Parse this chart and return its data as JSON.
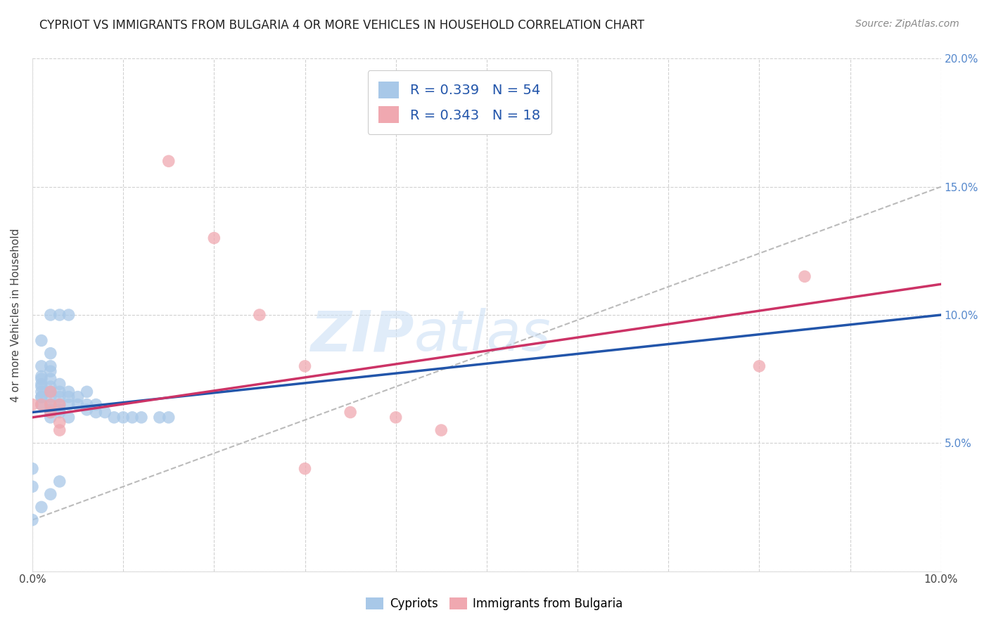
{
  "title": "CYPRIOT VS IMMIGRANTS FROM BULGARIA 4 OR MORE VEHICLES IN HOUSEHOLD CORRELATION CHART",
  "source": "Source: ZipAtlas.com",
  "ylabel": "4 or more Vehicles in Household",
  "xlim": [
    0.0,
    0.1
  ],
  "ylim": [
    0.0,
    0.2
  ],
  "xticks": [
    0.0,
    0.01,
    0.02,
    0.03,
    0.04,
    0.05,
    0.06,
    0.07,
    0.08,
    0.09,
    0.1
  ],
  "yticks": [
    0.0,
    0.05,
    0.1,
    0.15,
    0.2
  ],
  "right_ytick_labels": [
    "",
    "5.0%",
    "10.0%",
    "15.0%",
    "20.0%"
  ],
  "xtick_labels": [
    "0.0%",
    "",
    "",
    "",
    "",
    "",
    "",
    "",
    "",
    "",
    "10.0%"
  ],
  "blue_color": "#a8c8e8",
  "pink_color": "#f0a8b0",
  "blue_line_color": "#2255aa",
  "pink_line_color": "#cc3366",
  "dashed_line_color": "#bbbbbb",
  "legend_text_color": "#2255aa",
  "watermark_text": "ZIPatlas",
  "watermark_color": "#ddeeff",
  "R_blue": 0.339,
  "N_blue": 54,
  "R_pink": 0.343,
  "N_pink": 18,
  "blue_intercept": 0.062,
  "blue_slope": 0.38,
  "pink_intercept": 0.06,
  "pink_slope": 0.52,
  "dashed_intercept": 0.02,
  "dashed_slope": 1.3,
  "blue_points_x": [
    0.0,
    0.0,
    0.001,
    0.001,
    0.001,
    0.001,
    0.001,
    0.001,
    0.001,
    0.001,
    0.001,
    0.001,
    0.002,
    0.002,
    0.002,
    0.002,
    0.002,
    0.002,
    0.002,
    0.002,
    0.002,
    0.002,
    0.002,
    0.002,
    0.003,
    0.003,
    0.003,
    0.003,
    0.003,
    0.003,
    0.003,
    0.004,
    0.004,
    0.004,
    0.004,
    0.004,
    0.005,
    0.005,
    0.006,
    0.006,
    0.006,
    0.007,
    0.007,
    0.008,
    0.009,
    0.01,
    0.011,
    0.012,
    0.014,
    0.015,
    0.0,
    0.001,
    0.002,
    0.003
  ],
  "blue_points_y": [
    0.04,
    0.033,
    0.065,
    0.068,
    0.068,
    0.07,
    0.072,
    0.073,
    0.075,
    0.076,
    0.08,
    0.09,
    0.06,
    0.062,
    0.063,
    0.065,
    0.068,
    0.07,
    0.072,
    0.075,
    0.078,
    0.08,
    0.085,
    0.1,
    0.062,
    0.063,
    0.065,
    0.068,
    0.07,
    0.073,
    0.1,
    0.06,
    0.065,
    0.068,
    0.07,
    0.1,
    0.065,
    0.068,
    0.063,
    0.065,
    0.07,
    0.062,
    0.065,
    0.062,
    0.06,
    0.06,
    0.06,
    0.06,
    0.06,
    0.06,
    0.02,
    0.025,
    0.03,
    0.035
  ],
  "pink_points_x": [
    0.0,
    0.001,
    0.002,
    0.002,
    0.002,
    0.003,
    0.003,
    0.003,
    0.015,
    0.02,
    0.025,
    0.03,
    0.035,
    0.04,
    0.045,
    0.03,
    0.08,
    0.085
  ],
  "pink_points_y": [
    0.065,
    0.065,
    0.062,
    0.065,
    0.07,
    0.055,
    0.058,
    0.065,
    0.16,
    0.13,
    0.1,
    0.08,
    0.062,
    0.06,
    0.055,
    0.04,
    0.08,
    0.115
  ]
}
